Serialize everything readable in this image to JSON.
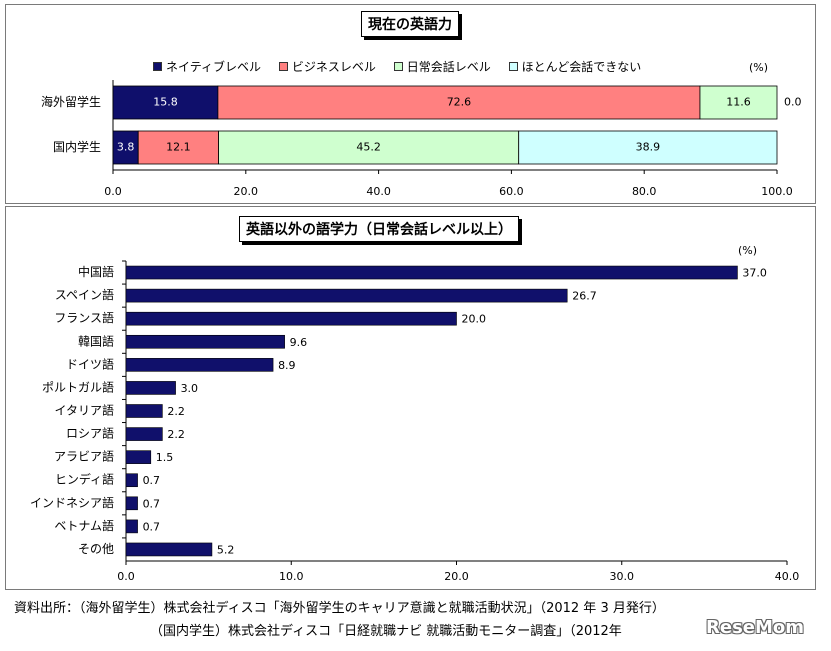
{
  "colors": {
    "native": "#0f0f6b",
    "business": "#ff8080",
    "daily": "#cfffcf",
    "none": "#cfffff",
    "lang_bar": "#10106b"
  },
  "chart_data": [
    {
      "type": "bar",
      "orientation": "horizontal",
      "stacked": true,
      "title": "現在の英語力",
      "unit_label": "(%)",
      "categories": [
        "海外留学生",
        "国内学生"
      ],
      "series": [
        {
          "name": "ネイティブレベル",
          "values": [
            15.8,
            3.8
          ]
        },
        {
          "name": "ビジネスレベル",
          "values": [
            72.6,
            12.1
          ]
        },
        {
          "name": "日常会話レベル",
          "values": [
            11.6,
            45.2
          ]
        },
        {
          "name": "ほとんど会話できない",
          "values": [
            0.0,
            38.9
          ]
        }
      ],
      "xlim": [
        0,
        100
      ],
      "xticks": [
        "0.0",
        "20.0",
        "40.0",
        "60.0",
        "80.0",
        "100.0"
      ],
      "legend": "top"
    },
    {
      "type": "bar",
      "orientation": "horizontal",
      "title": "英語以外の語学力（日常会話レベル以上）",
      "unit_label": "(%)",
      "categories": [
        "中国語",
        "スペイン語",
        "フランス語",
        "韓国語",
        "ドイツ語",
        "ポルトガル語",
        "イタリア語",
        "ロシア語",
        "アラビア語",
        "ヒンディ語",
        "インドネシア語",
        "ベトナム語",
        "その他"
      ],
      "values": [
        37.0,
        26.7,
        20.0,
        9.6,
        8.9,
        3.0,
        2.2,
        2.2,
        1.5,
        0.7,
        0.7,
        0.7,
        5.2
      ],
      "xlim": [
        0,
        40
      ],
      "xticks": [
        "0.0",
        "10.0",
        "20.0",
        "30.0",
        "40.0"
      ]
    }
  ],
  "source": {
    "line1": "資料出所：（海外留学生）株式会社ディスコ「海外留学生のキャリア意識と就職活動状況」（2012 年 3 月発行）",
    "line2": "（国内学生）株式会社ディスコ「日経就職ナビ 就職活動モニター調査」（2012年"
  },
  "logo_text": "ReseMom"
}
